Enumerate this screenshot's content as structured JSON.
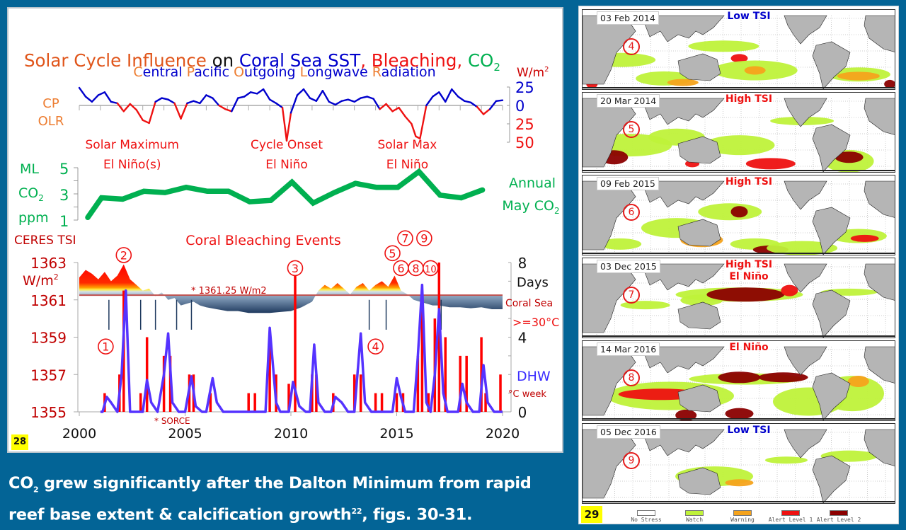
{
  "slide": {
    "caption_line1_pre": "CO",
    "caption_line1_sub": "2",
    "caption_line1_post": " grew significantly after the Dalton Minimum from rapid",
    "caption_line2_pre": "reef base extent & calcification growth",
    "caption_line2_sup": "22",
    "caption_line2_post": ", figs. 30-31.",
    "left_badge": "28",
    "right_badge": "29"
  },
  "colors": {
    "background": "#036496",
    "olr_positive": "#0000cc",
    "olr_negative": "#ee1111",
    "co2": "#00b050",
    "tsi_high": "#ff0000",
    "tsi_low": "#1f3a5f",
    "days": "#ff0000",
    "dhw": "#5533ff",
    "ref_line": "#c0504d"
  },
  "chart_data": [
    {
      "type": "line",
      "id": "olr",
      "title_parts": [
        {
          "text": "C",
          "color": "#ed7d31"
        },
        {
          "text": "entral ",
          "color": "#0000cc"
        },
        {
          "text": "P",
          "color": "#ed7d31"
        },
        {
          "text": "acific ",
          "color": "#0000cc"
        },
        {
          "text": "O",
          "color": "#ed7d31"
        },
        {
          "text": "utgoing ",
          "color": "#0000cc"
        },
        {
          "text": "L",
          "color": "#ed7d31"
        },
        {
          "text": "ongwave ",
          "color": "#0000cc"
        },
        {
          "text": "R",
          "color": "#ed7d31"
        },
        {
          "text": "adiation",
          "color": "#0000cc"
        }
      ],
      "ylabel_top": "CP",
      "ylabel_bottom": "OLR",
      "unit": "W/m²",
      "yticks": [
        "25",
        "0",
        "25",
        "50"
      ],
      "ytick_values": [
        25,
        0,
        -25,
        -50
      ],
      "xlim": [
        2000,
        2020
      ],
      "annotations": [
        {
          "line1": "Solar Maximum",
          "line2": "El Niño(s)",
          "x": 2002.5
        },
        {
          "line1": "Cycle   Onset",
          "line2": "El Niño",
          "x": 2009.8
        },
        {
          "line1": "Solar   Max",
          "line2": "El Niño",
          "x": 2015.5
        }
      ],
      "x": [
        2000.0,
        2000.3,
        2000.6,
        2000.9,
        2001.2,
        2001.5,
        2001.8,
        2002.1,
        2002.4,
        2002.7,
        2003.0,
        2003.3,
        2003.6,
        2003.9,
        2004.2,
        2004.5,
        2004.8,
        2005.1,
        2005.4,
        2005.7,
        2006.0,
        2006.3,
        2006.6,
        2006.9,
        2007.2,
        2007.5,
        2007.8,
        2008.1,
        2008.4,
        2008.7,
        2009.0,
        2009.3,
        2009.6,
        2009.8,
        2010.0,
        2010.3,
        2010.6,
        2010.9,
        2011.2,
        2011.5,
        2011.8,
        2012.1,
        2012.4,
        2012.7,
        2013.0,
        2013.3,
        2013.6,
        2013.9,
        2014.2,
        2014.5,
        2014.8,
        2015.1,
        2015.4,
        2015.7,
        2015.9,
        2016.1,
        2016.4,
        2016.7,
        2017.0,
        2017.3,
        2017.6,
        2017.9,
        2018.2,
        2018.5,
        2018.8,
        2019.1,
        2019.4,
        2019.7,
        2020.0
      ],
      "values": [
        24,
        12,
        5,
        14,
        18,
        5,
        3,
        -8,
        2,
        -6,
        -20,
        -24,
        5,
        10,
        8,
        3,
        -18,
        3,
        6,
        3,
        14,
        10,
        0,
        -5,
        -8,
        10,
        12,
        18,
        16,
        22,
        8,
        3,
        -3,
        -48,
        -10,
        14,
        22,
        10,
        6,
        20,
        5,
        1,
        6,
        8,
        5,
        10,
        12,
        9,
        -5,
        2,
        -8,
        -3,
        -15,
        -25,
        -42,
        -45,
        0,
        12,
        18,
        5,
        22,
        12,
        6,
        4,
        -2,
        -12,
        -5,
        6,
        7
      ]
    },
    {
      "type": "line",
      "id": "co2",
      "ylabel_parts": [
        "ML",
        "CO2",
        "ppm"
      ],
      "yticks": [
        1,
        3,
        5
      ],
      "ylim": [
        1,
        5
      ],
      "legend": [
        "Annual",
        "May CO2"
      ],
      "x": [
        2000,
        2001,
        2002,
        2003,
        2004,
        2005,
        2006,
        2007,
        2008,
        2009,
        2010,
        2011,
        2012,
        2013,
        2014,
        2015,
        2016,
        2017,
        2018,
        2019
      ],
      "values": [
        1.2,
        2.7,
        2.6,
        3.2,
        3.1,
        3.5,
        3.2,
        3.2,
        2.4,
        2.5,
        3.9,
        2.3,
        3.1,
        3.8,
        3.5,
        3.5,
        4.7,
        2.9,
        2.7,
        3.3
      ]
    },
    {
      "type": "area",
      "id": "tsi-bleaching",
      "title": "Coral Bleaching Events",
      "left_axis_label": "CERES TSI",
      "left_unit": "W/m²",
      "left_yticks": [
        1363,
        1361,
        1359,
        1357,
        1355
      ],
      "left_ylim": [
        1355,
        1363
      ],
      "right_yticks": [
        "8",
        "4",
        "0"
      ],
      "right_ylim": [
        0,
        8
      ],
      "right_label_days": "Days",
      "right_label_coral": "Coral Sea",
      "right_label_thresh": ">=30°C",
      "right_label_dhw": "DHW",
      "right_label_dhw_unit": "°C week",
      "ref_value": 1361.25,
      "ref_label": "* 1361.25 W/m2",
      "sorce_label": "* SORCE",
      "xticks": [
        "2000",
        "2005",
        "2010",
        "2015",
        "2020"
      ],
      "xlim": [
        2000,
        2020
      ],
      "events": [
        {
          "n": "1",
          "x": 2001.25,
          "y": 1358.5
        },
        {
          "n": "2",
          "x": 2002.1,
          "y": 1363.4
        },
        {
          "n": "3",
          "x": 2010.2,
          "y": 1362.7
        },
        {
          "n": "4",
          "x": 2014.0,
          "y": 1358.5
        },
        {
          "n": "5",
          "x": 2014.8,
          "y": 1363.5
        },
        {
          "n": "6",
          "x": 2015.2,
          "y": 1362.7
        },
        {
          "n": "7",
          "x": 2015.4,
          "y": 1364.3
        },
        {
          "n": "8",
          "x": 2015.9,
          "y": 1362.7
        },
        {
          "n": "9",
          "x": 2016.3,
          "y": 1364.3
        },
        {
          "n": "10",
          "x": 2016.6,
          "y": 1362.7
        }
      ],
      "tsi_x": [
        2000.0,
        2000.3,
        2000.6,
        2000.9,
        2001.2,
        2001.5,
        2001.8,
        2002.1,
        2002.4,
        2002.7,
        2003.0,
        2003.3,
        2003.6,
        2003.9,
        2004.2,
        2004.5,
        2004.8,
        2005.1,
        2005.4,
        2005.7,
        2006.0,
        2006.5,
        2007.0,
        2007.5,
        2008.0,
        2008.5,
        2009.0,
        2009.5,
        2010.0,
        2010.5,
        2011.0,
        2011.3,
        2011.6,
        2011.9,
        2012.2,
        2012.5,
        2012.8,
        2013.1,
        2013.4,
        2013.7,
        2014.0,
        2014.3,
        2014.6,
        2014.9,
        2015.2,
        2015.5,
        2015.8,
        2016.1,
        2016.4,
        2016.7,
        2017.0,
        2017.5,
        2018.0,
        2018.5,
        2019.0,
        2019.5,
        2020.0
      ],
      "tsi_values": [
        1362.2,
        1362.6,
        1362.4,
        1362.1,
        1362.5,
        1362.0,
        1362.3,
        1362.9,
        1362.1,
        1361.8,
        1361.5,
        1361.6,
        1361.2,
        1361.4,
        1361.0,
        1361.1,
        1360.7,
        1360.8,
        1360.9,
        1360.7,
        1360.6,
        1360.5,
        1360.4,
        1360.4,
        1360.3,
        1360.3,
        1360.3,
        1360.35,
        1360.4,
        1360.6,
        1360.9,
        1361.5,
        1361.8,
        1361.6,
        1361.9,
        1361.6,
        1361.3,
        1361.7,
        1361.9,
        1361.5,
        1361.8,
        1362.0,
        1361.7,
        1362.3,
        1361.5,
        1361.3,
        1361.0,
        1360.9,
        1360.8,
        1360.7,
        1360.7,
        1360.6,
        1360.6,
        1360.55,
        1360.6,
        1360.5,
        1360.5
      ],
      "days_x": [
        2001.2,
        2001.9,
        2002.1,
        2002.9,
        2003.2,
        2004.0,
        2004.3,
        2005.2,
        2005.4,
        2006.2,
        2008.0,
        2008.3,
        2009.0,
        2009.3,
        2009.9,
        2010.2,
        2011.0,
        2011.2,
        2012.0,
        2013.0,
        2013.3,
        2014.0,
        2014.3,
        2015.0,
        2015.3,
        2016.0,
        2016.2,
        2016.5,
        2016.8,
        2017.0,
        2017.3,
        2018.0,
        2018.3,
        2019.0,
        2019.2,
        2019.9
      ],
      "days_values": [
        1.0,
        2.0,
        6.5,
        1.0,
        4.0,
        3.0,
        3.0,
        2.0,
        2.0,
        1.0,
        1.0,
        1.0,
        4.0,
        2.0,
        1.5,
        8.0,
        2.0,
        2.0,
        1.0,
        2.0,
        2.0,
        1.0,
        1.0,
        1.0,
        1.0,
        3.0,
        6.5,
        1.0,
        5.0,
        8.0,
        4.0,
        3.0,
        3.0,
        4.0,
        1.0,
        2.0
      ],
      "dhw_x": [
        2001.1,
        2001.3,
        2001.5,
        2001.8,
        2002.0,
        2002.2,
        2002.4,
        2002.7,
        2003.0,
        2003.2,
        2003.4,
        2003.7,
        2004.0,
        2004.2,
        2004.4,
        2004.7,
        2005.0,
        2005.3,
        2005.5,
        2005.8,
        2006.0,
        2006.3,
        2006.5,
        2006.8,
        2008.8,
        2009.0,
        2009.3,
        2009.5,
        2009.9,
        2010.1,
        2010.4,
        2010.7,
        2010.9,
        2011.1,
        2011.3,
        2011.6,
        2011.9,
        2012.1,
        2012.4,
        2012.7,
        2013.0,
        2013.3,
        2013.5,
        2013.8,
        2014.8,
        2015.0,
        2015.2,
        2015.4,
        2015.8,
        2016.0,
        2016.2,
        2016.4,
        2016.6,
        2016.8,
        2017.0,
        2017.2,
        2017.4,
        2017.6,
        2017.9,
        2018.1,
        2018.3,
        2018.6,
        2018.9,
        2019.1,
        2019.3,
        2019.6,
        2020.0
      ],
      "dhw_values": [
        0,
        0.8,
        0.5,
        0,
        2.0,
        6.5,
        0,
        0,
        0,
        1.7,
        0.5,
        0,
        2.0,
        4.2,
        0.5,
        0,
        0,
        1.9,
        0.3,
        0,
        0,
        1.8,
        0.5,
        0,
        0,
        4.5,
        0.5,
        0,
        0,
        1.6,
        0.3,
        0,
        0,
        3.6,
        0.5,
        0,
        0,
        0.8,
        0.5,
        0,
        0,
        4.2,
        0.5,
        0,
        0,
        1.8,
        0.8,
        0,
        0,
        3.0,
        6.8,
        0.5,
        0,
        2.0,
        5.5,
        1.0,
        0,
        0,
        0,
        1.5,
        0.5,
        0,
        0,
        2.5,
        0.5,
        0,
        0
      ]
    },
    {
      "type": "heatmap",
      "id": "coral-reef-watch-maps",
      "legend": [
        {
          "label": "No Stress",
          "color": "#ffffff"
        },
        {
          "label": "Watch",
          "color": "#bff23a"
        },
        {
          "label": "Warning",
          "color": "#f5a31c"
        },
        {
          "label": "Alert Level 1",
          "color": "#ee1111"
        },
        {
          "label": "Alert Level 2",
          "color": "#8b0000"
        }
      ],
      "lon_ticks": [
        "40",
        "60",
        "80",
        "100",
        "120",
        "140",
        "160",
        "180",
        "-160",
        "-140",
        "-120",
        "-100",
        "-80",
        "-60",
        "-40",
        "-20",
        "0"
      ],
      "panels": [
        {
          "date": "03 Feb 2014",
          "label1": "Low TSI",
          "label2": "",
          "label_color": "#0000cc",
          "event": "4"
        },
        {
          "date": "20 Mar 2014",
          "label1": "High TSI",
          "label2": "",
          "label_color": "#ee1111",
          "event": "5"
        },
        {
          "date": "09 Feb 2015",
          "label1": "High TSI",
          "label2": "",
          "label_color": "#ee1111",
          "event": "6"
        },
        {
          "date": "03 Dec 2015",
          "label1": "High TSI",
          "label2": "El Niño",
          "label_color": "#ee1111",
          "event": "7"
        },
        {
          "date": "14 Mar 2016",
          "label1": "El Niño",
          "label2": "",
          "label_color": "#ee1111",
          "event": "8"
        },
        {
          "date": "05 Dec 2016",
          "label1": "Low TSI",
          "label2": "",
          "label_color": "#0000cc",
          "event": "9"
        }
      ]
    }
  ],
  "main_title": {
    "parts": [
      {
        "text": "Solar Cycle Influence",
        "color": "#e0551a"
      },
      {
        "text": " on ",
        "color": "#111111"
      },
      {
        "text": "Coral Sea SST",
        "color": "#0000cc"
      },
      {
        "text": ", Bleaching, ",
        "color": "#ee1111"
      },
      {
        "text": "CO",
        "color": "#00b050"
      }
    ],
    "sub": "2",
    "sub_color": "#00b050"
  }
}
